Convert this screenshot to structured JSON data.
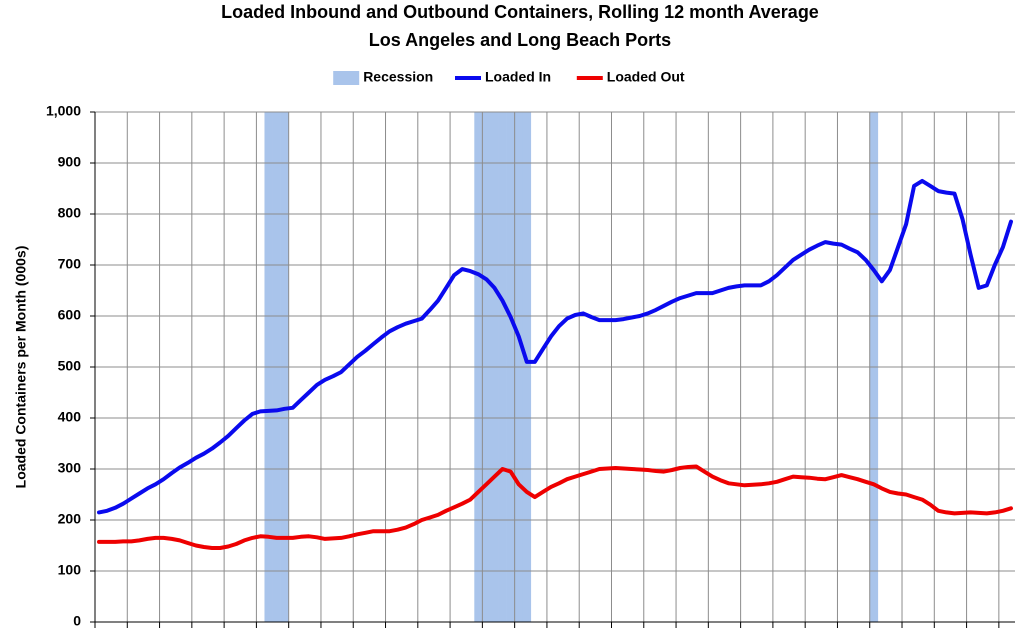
{
  "chart_data": {
    "type": "line",
    "title": "Loaded Inbound and Outbound Containers, Rolling 12 month Average",
    "subtitle": "Los Angeles and Long Beach Ports",
    "y_label": "Loaded Containers per Month (000s)",
    "legend": "top",
    "grid": true,
    "ylim": [
      0,
      1000
    ],
    "yticks": [
      0,
      100,
      200,
      300,
      400,
      500,
      600,
      700,
      800,
      900,
      {
        "value": 1000,
        "label": "1,000"
      }
    ],
    "categories": [
      null,
      null,
      null,
      null,
      null,
      null,
      null,
      null,
      null,
      null,
      null,
      null,
      null,
      null,
      null,
      null,
      null,
      null,
      null,
      null,
      null,
      null,
      null,
      null,
      null,
      null,
      null,
      null,
      null,
      null,
      null,
      null,
      null,
      null,
      null,
      null,
      null,
      null,
      null,
      null,
      null,
      null,
      null,
      null,
      null,
      null,
      null,
      null,
      null,
      null,
      null,
      null,
      null,
      null,
      null,
      null,
      null,
      null,
      null,
      null,
      null,
      null,
      null,
      null,
      null,
      null,
      null,
      null,
      null,
      null,
      null,
      null,
      null,
      null,
      null,
      null,
      null,
      null,
      null,
      null,
      null,
      null,
      null,
      null,
      null,
      null,
      null,
      null,
      null,
      null,
      null,
      null,
      null,
      null,
      null,
      null,
      null,
      null,
      null,
      null,
      null,
      null,
      null,
      null,
      null,
      null,
      null,
      null,
      null,
      null,
      null,
      null,
      null,
      null
    ],
    "series": [
      {
        "name": "Recession",
        "color": "#a9c4eb",
        "kind": "band",
        "values": [
          null,
          null,
          null,
          null,
          null,
          null,
          null,
          null,
          null,
          null,
          null,
          null,
          null,
          null,
          null,
          null,
          null,
          null,
          null,
          null,
          null,
          1000,
          1000,
          1000,
          null,
          null,
          null,
          null,
          null,
          null,
          null,
          null,
          null,
          null,
          null,
          null,
          null,
          null,
          null,
          null,
          null,
          null,
          null,
          null,
          null,
          null,
          null,
          1000,
          1000,
          1000,
          1000,
          1000,
          1000,
          1000,
          null,
          null,
          null,
          null,
          null,
          null,
          null,
          null,
          null,
          null,
          null,
          null,
          null,
          null,
          null,
          null,
          null,
          null,
          null,
          null,
          null,
          null,
          null,
          null,
          null,
          null,
          null,
          null,
          null,
          null,
          null,
          null,
          null,
          null,
          null,
          null,
          null,
          null,
          null,
          null,
          null,
          null,
          1000,
          null,
          null,
          null,
          null,
          null,
          null,
          null,
          null,
          null,
          null,
          null,
          null,
          null,
          null,
          null,
          null,
          null
        ]
      },
      {
        "name": "Loaded In",
        "color": "#0a0aee",
        "values": [
          215,
          218,
          224,
          232,
          242,
          252,
          262,
          270,
          280,
          292,
          303,
          312,
          322,
          330,
          340,
          352,
          365,
          380,
          395,
          408,
          413,
          414,
          415,
          418,
          420,
          435,
          450,
          465,
          475,
          482,
          490,
          505,
          520,
          532,
          545,
          558,
          570,
          578,
          585,
          590,
          595,
          612,
          630,
          655,
          680,
          692,
          688,
          682,
          672,
          655,
          630,
          598,
          560,
          510,
          510,
          535,
          560,
          580,
          595,
          602,
          605,
          598,
          592,
          592,
          592,
          594,
          597,
          600,
          605,
          612,
          620,
          628,
          635,
          640,
          645,
          645,
          645,
          650,
          655,
          658,
          660,
          660,
          660,
          668,
          680,
          695,
          710,
          720,
          730,
          738,
          745,
          742,
          740,
          732,
          725,
          710,
          690,
          668,
          690,
          735,
          780,
          855,
          865,
          855,
          845,
          842,
          840,
          790,
          720,
          655,
          660,
          700,
          735,
          785
        ]
      },
      {
        "name": "Loaded Out",
        "color": "#ee0000",
        "values": [
          157,
          157,
          157,
          158,
          158,
          160,
          163,
          165,
          165,
          163,
          160,
          155,
          150,
          147,
          145,
          145,
          148,
          153,
          160,
          165,
          168,
          167,
          165,
          165,
          165,
          167,
          168,
          166,
          163,
          164,
          165,
          168,
          172,
          175,
          178,
          178,
          178,
          181,
          185,
          192,
          200,
          205,
          210,
          218,
          225,
          232,
          240,
          255,
          270,
          285,
          300,
          295,
          270,
          255,
          245,
          255,
          265,
          272,
          280,
          285,
          290,
          295,
          300,
          301,
          302,
          301,
          300,
          299,
          298,
          296,
          295,
          298,
          302,
          304,
          305,
          295,
          285,
          278,
          272,
          270,
          268,
          269,
          270,
          272,
          275,
          280,
          285,
          284,
          283,
          281,
          280,
          284,
          288,
          284,
          280,
          275,
          270,
          262,
          255,
          252,
          250,
          245,
          240,
          230,
          218,
          215,
          213,
          214,
          215,
          214,
          213,
          215,
          218,
          223
        ]
      }
    ]
  }
}
